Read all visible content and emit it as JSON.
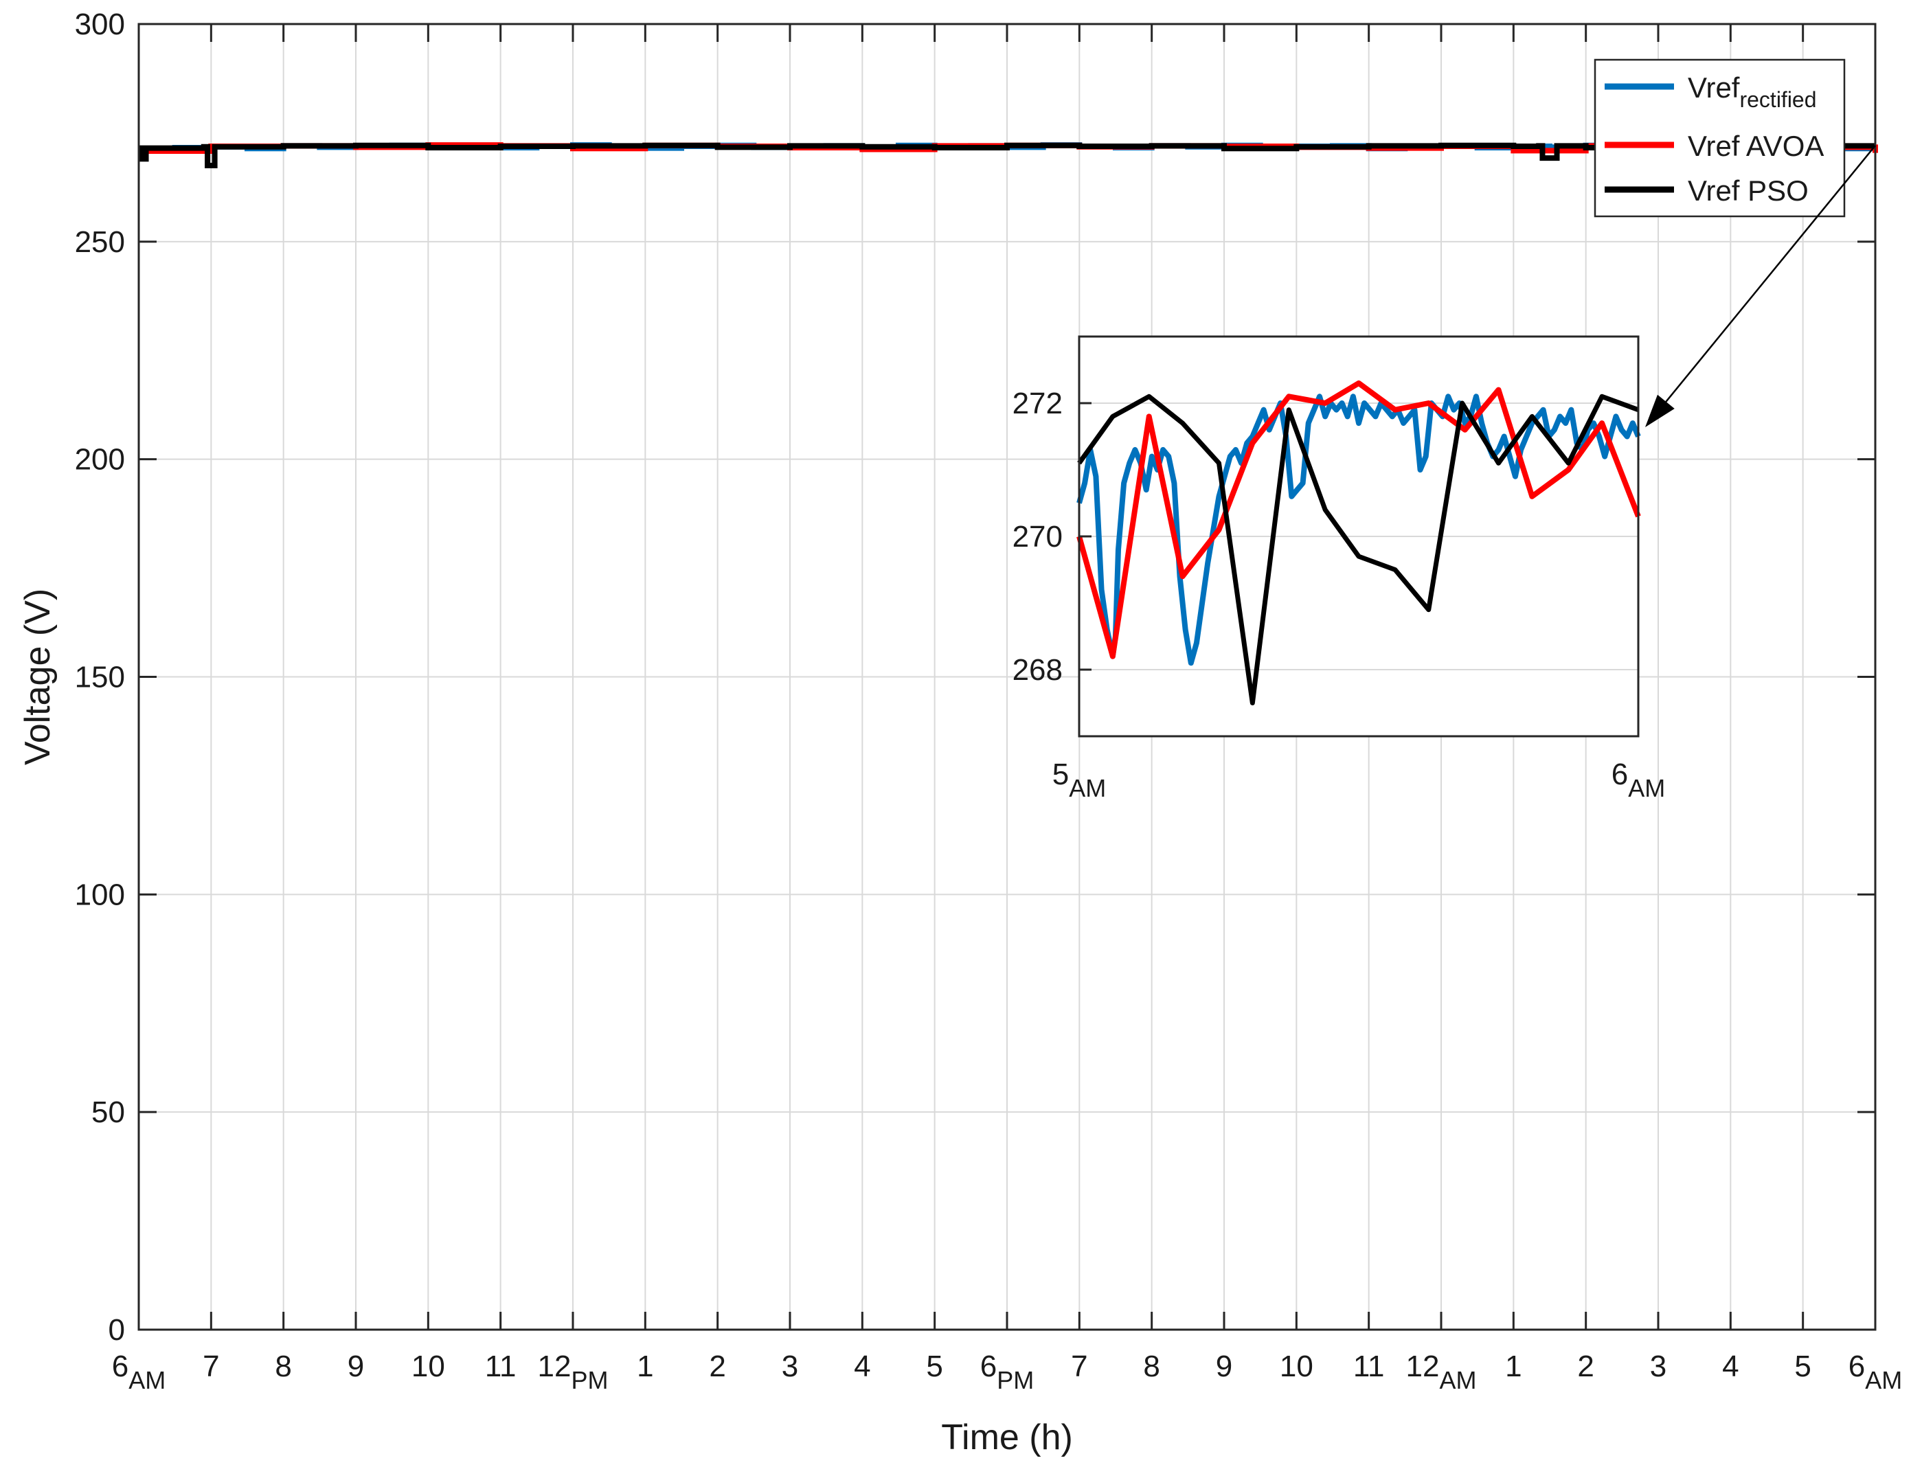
{
  "chart_data": {
    "type": "line",
    "xlabel": "Time (h)",
    "ylabel": "Voltage (V)",
    "ylim": [
      0,
      300
    ],
    "yticks": [
      0,
      50,
      100,
      150,
      200,
      250,
      300
    ],
    "grid": true,
    "legend_position": "top-right",
    "x_ticks": [
      {
        "main": "6",
        "sub": "AM"
      },
      {
        "main": "7",
        "sub": ""
      },
      {
        "main": "8",
        "sub": ""
      },
      {
        "main": "9",
        "sub": ""
      },
      {
        "main": "10",
        "sub": ""
      },
      {
        "main": "11",
        "sub": ""
      },
      {
        "main": "12",
        "sub": "PM"
      },
      {
        "main": "1",
        "sub": ""
      },
      {
        "main": "2",
        "sub": ""
      },
      {
        "main": "3",
        "sub": ""
      },
      {
        "main": "4",
        "sub": ""
      },
      {
        "main": "5",
        "sub": ""
      },
      {
        "main": "6",
        "sub": "PM"
      },
      {
        "main": "7",
        "sub": ""
      },
      {
        "main": "8",
        "sub": ""
      },
      {
        "main": "9",
        "sub": ""
      },
      {
        "main": "10",
        "sub": ""
      },
      {
        "main": "11",
        "sub": ""
      },
      {
        "main": "12",
        "sub": "AM"
      },
      {
        "main": "1",
        "sub": ""
      },
      {
        "main": "2",
        "sub": ""
      },
      {
        "main": "3",
        "sub": ""
      },
      {
        "main": "4",
        "sub": ""
      },
      {
        "main": "5",
        "sub": ""
      },
      {
        "main": "6",
        "sub": "AM"
      }
    ],
    "series": [
      {
        "name": "Vref",
        "name_sub": "rectified",
        "color": "#0072BD",
        "x_hours": [
          0,
          0.5,
          1,
          1.5,
          2,
          2.5,
          3,
          3.5,
          4,
          4.5,
          5,
          5.5,
          6,
          6.5,
          7,
          7.5,
          8,
          8.5,
          9,
          9.5,
          10,
          10.5,
          11,
          11.5,
          12,
          12.5,
          13,
          13.5,
          14,
          14.5,
          15,
          15.5,
          16,
          16.5,
          17,
          17.5,
          18,
          18.5,
          19,
          19.5,
          20,
          20.5,
          21,
          21.5,
          22,
          22.5,
          23,
          23.5,
          24
        ],
        "values": [
          271.2,
          271.6,
          271.8,
          271.4,
          272.0,
          271.7,
          271.9,
          272.1,
          271.8,
          272.0,
          271.6,
          271.9,
          272.2,
          271.8,
          271.5,
          271.9,
          272.1,
          271.7,
          271.9,
          272.0,
          271.6,
          272.1,
          271.8,
          272.0,
          271.7,
          272.2,
          271.9,
          271.6,
          272.0,
          271.8,
          272.1,
          271.5,
          271.9,
          272.0,
          271.4,
          271.8,
          272.0,
          271.6,
          271.9,
          271.7,
          272.1,
          271.3,
          271.8,
          271.5,
          271.9,
          271.2,
          271.6,
          271.4,
          271.5
        ]
      },
      {
        "name": "Vref AVOA",
        "color": "#FF0000",
        "x_hours": [
          0,
          1,
          2,
          3,
          4,
          5,
          6,
          7,
          8,
          9,
          10,
          11,
          12,
          13,
          14,
          15,
          16,
          17,
          18,
          19,
          20,
          21,
          22,
          23,
          24
        ],
        "values": [
          270.8,
          271.9,
          272.0,
          271.7,
          272.2,
          272.0,
          271.4,
          272.1,
          271.9,
          271.6,
          271.2,
          272.0,
          272.1,
          271.8,
          272.0,
          271.9,
          271.7,
          271.5,
          271.9,
          270.9,
          272.0,
          271.8,
          271.2,
          271.7,
          270.4
        ]
      },
      {
        "name": "Vref PSO",
        "color": "#000000",
        "x_hours": [
          0,
          0.05,
          0.1,
          0.9,
          0.95,
          1.0,
          1.05,
          2,
          3,
          4,
          5,
          6,
          7,
          8,
          9,
          10,
          11,
          12,
          13,
          14,
          15,
          16,
          17,
          18,
          19,
          19.35,
          19.4,
          19.55,
          19.6,
          20,
          21,
          22,
          23,
          24
        ],
        "values": [
          271.5,
          269.0,
          271.5,
          271.8,
          267.5,
          267.5,
          271.8,
          272.0,
          272.1,
          271.6,
          271.9,
          272.0,
          272.1,
          271.7,
          272.0,
          271.8,
          271.6,
          272.1,
          271.9,
          272.0,
          271.4,
          271.8,
          272.0,
          272.1,
          271.9,
          272.0,
          269.2,
          269.2,
          272.0,
          271.6,
          271.9,
          271.8,
          272.0,
          272.0
        ]
      }
    ],
    "inset": {
      "ylim": [
        267,
        273
      ],
      "yticks": [
        268,
        270,
        272
      ],
      "xlim": [
        0,
        1
      ],
      "x_ticks": [
        {
          "main": "5",
          "sub": "AM"
        },
        {
          "main": "6",
          "sub": "AM"
        }
      ],
      "series": [
        {
          "name": "Vref rectified",
          "color": "#0072BD",
          "x": [
            0,
            0.01,
            0.02,
            0.03,
            0.04,
            0.05,
            0.055,
            0.06,
            0.065,
            0.07,
            0.08,
            0.09,
            0.1,
            0.11,
            0.12,
            0.13,
            0.14,
            0.15,
            0.16,
            0.17,
            0.18,
            0.19,
            0.2,
            0.21,
            0.22,
            0.23,
            0.24,
            0.25,
            0.26,
            0.27,
            0.28,
            0.29,
            0.3,
            0.31,
            0.32,
            0.33,
            0.34,
            0.35,
            0.36,
            0.37,
            0.38,
            0.39,
            0.4,
            0.41,
            0.42,
            0.43,
            0.44,
            0.45,
            0.46,
            0.47,
            0.48,
            0.49,
            0.5,
            0.51,
            0.52,
            0.53,
            0.54,
            0.55,
            0.56,
            0.57,
            0.58,
            0.59,
            0.6,
            0.61,
            0.62,
            0.63,
            0.64,
            0.65,
            0.66,
            0.67,
            0.68,
            0.69,
            0.7,
            0.71,
            0.72,
            0.73,
            0.74,
            0.75,
            0.76,
            0.77,
            0.78,
            0.79,
            0.8,
            0.81,
            0.82,
            0.83,
            0.84,
            0.85,
            0.86,
            0.87,
            0.88,
            0.89,
            0.9,
            0.91,
            0.92,
            0.93,
            0.94,
            0.95,
            0.96,
            0.97,
            0.98,
            0.99,
            1.0
          ],
          "values": [
            270.5,
            270.8,
            271.3,
            270.9,
            269.2,
            268.6,
            268.4,
            268.2,
            268.5,
            269.8,
            270.8,
            271.1,
            271.3,
            271.1,
            270.7,
            271.2,
            271.0,
            271.3,
            271.2,
            270.8,
            269.4,
            268.6,
            268.1,
            268.4,
            269.0,
            269.6,
            270.1,
            270.6,
            270.9,
            271.2,
            271.3,
            271.1,
            271.4,
            271.5,
            271.7,
            271.9,
            271.6,
            271.8,
            272.0,
            271.5,
            270.6,
            270.7,
            270.8,
            271.7,
            271.9,
            272.1,
            271.8,
            272.0,
            271.9,
            272.0,
            271.8,
            272.1,
            271.7,
            272.0,
            271.9,
            271.8,
            272.0,
            271.9,
            271.8,
            271.9,
            271.7,
            271.8,
            271.9,
            271.0,
            271.2,
            272.0,
            271.9,
            271.8,
            272.1,
            271.9,
            272.0,
            271.7,
            271.8,
            272.1,
            271.7,
            271.4,
            271.2,
            271.3,
            271.5,
            271.2,
            270.9,
            271.3,
            271.5,
            271.7,
            271.8,
            271.9,
            271.5,
            271.6,
            271.8,
            271.7,
            271.9,
            271.4,
            271.3,
            271.6,
            271.7,
            271.5,
            271.2,
            271.5,
            271.8,
            271.6,
            271.5,
            271.7,
            271.5
          ]
        },
        {
          "name": "Vref AVOA",
          "color": "#FF0000",
          "x": [
            0,
            0.06,
            0.125,
            0.185,
            0.25,
            0.31,
            0.375,
            0.44,
            0.5,
            0.565,
            0.625,
            0.69,
            0.75,
            0.81,
            0.875,
            0.935,
            1.0
          ],
          "values": [
            270.0,
            268.2,
            271.8,
            269.4,
            270.1,
            271.4,
            272.1,
            272.0,
            272.3,
            271.9,
            272.0,
            271.6,
            272.2,
            270.6,
            271.0,
            271.7,
            270.3
          ]
        },
        {
          "name": "Vref PSO",
          "color": "#000000",
          "x": [
            0,
            0.06,
            0.125,
            0.185,
            0.25,
            0.31,
            0.375,
            0.44,
            0.5,
            0.565,
            0.625,
            0.685,
            0.75,
            0.81,
            0.875,
            0.935,
            1.0
          ],
          "values": [
            271.1,
            271.8,
            272.1,
            271.7,
            271.1,
            267.5,
            271.9,
            270.4,
            269.7,
            269.5,
            268.9,
            272.0,
            271.1,
            271.8,
            271.1,
            272.1,
            271.9
          ]
        }
      ]
    }
  }
}
